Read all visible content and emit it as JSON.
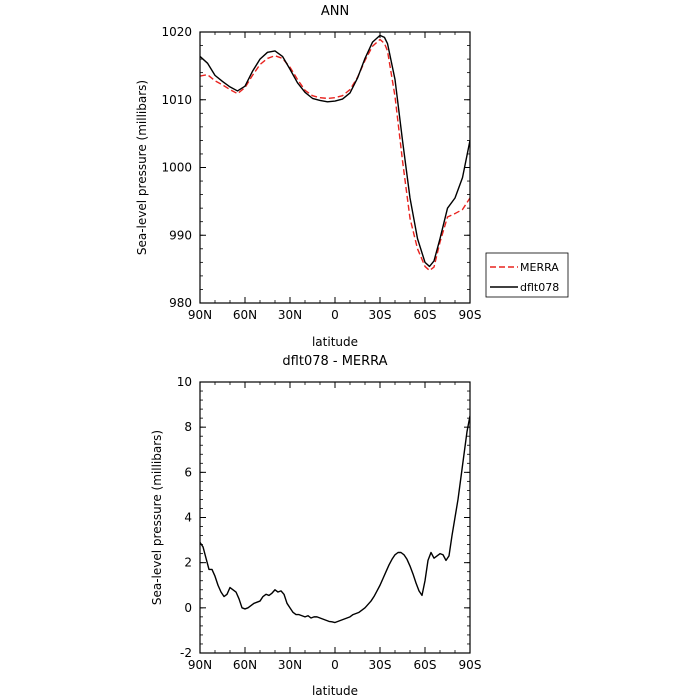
{
  "chart_data": [
    {
      "type": "line",
      "title": "ANN",
      "xlabel": "latitude",
      "ylabel": "Sea-level pressure (millibars)",
      "xlim": [
        -90,
        90
      ],
      "ylim": [
        980,
        1020
      ],
      "x_ticks": [
        -90,
        -60,
        -30,
        0,
        30,
        60,
        90
      ],
      "x_tick_labels": [
        "90N",
        "60N",
        "30N",
        "0",
        "30S",
        "60S",
        "90S"
      ],
      "y_ticks": [
        980,
        990,
        1000,
        1010,
        1020
      ],
      "y_tick_labels": [
        "980",
        "990",
        "1000",
        "1010",
        "1020"
      ],
      "grid": false,
      "legend_position": "right",
      "series": [
        {
          "name": "MERRA",
          "color": "#e8231f",
          "dash": "dashed",
          "x": [
            -90,
            -85,
            -80,
            -75,
            -70,
            -65,
            -60,
            -55,
            -50,
            -45,
            -40,
            -35,
            -30,
            -25,
            -20,
            -15,
            -10,
            -5,
            0,
            5,
            10,
            15,
            20,
            25,
            30,
            33,
            35,
            40,
            45,
            50,
            55,
            60,
            63,
            66,
            70,
            75,
            80,
            85,
            90
          ],
          "y": [
            1013.5,
            1013.7,
            1012.8,
            1012.2,
            1011.5,
            1010.9,
            1011.8,
            1013.6,
            1015.2,
            1016.1,
            1016.5,
            1016.1,
            1014.8,
            1013.0,
            1011.4,
            1010.6,
            1010.3,
            1010.2,
            1010.3,
            1010.6,
            1011.5,
            1013.3,
            1015.8,
            1017.9,
            1018.9,
            1018.3,
            1017.2,
            1010.5,
            1001.0,
            992.5,
            988.0,
            985.4,
            984.8,
            985.3,
            989.0,
            992.7,
            993.2,
            993.8,
            995.5
          ]
        },
        {
          "name": "dflt078",
          "color": "#000000",
          "dash": "solid",
          "x": [
            -90,
            -85,
            -80,
            -75,
            -70,
            -65,
            -60,
            -55,
            -50,
            -45,
            -40,
            -35,
            -30,
            -25,
            -20,
            -15,
            -10,
            -5,
            0,
            5,
            10,
            15,
            20,
            25,
            30,
            33,
            35,
            40,
            45,
            50,
            55,
            60,
            63,
            66,
            70,
            75,
            80,
            85,
            90
          ],
          "y": [
            1016.4,
            1015.4,
            1013.6,
            1012.7,
            1011.9,
            1011.3,
            1012.0,
            1014.2,
            1016.0,
            1017.0,
            1017.2,
            1016.4,
            1014.5,
            1012.5,
            1011.1,
            1010.2,
            1009.9,
            1009.7,
            1009.8,
            1010.1,
            1011.0,
            1013.2,
            1016.1,
            1018.5,
            1019.5,
            1019.2,
            1018.3,
            1013.0,
            1004.0,
            995.5,
            989.5,
            986.0,
            985.4,
            986.2,
            989.5,
            994.0,
            995.5,
            998.5,
            1004.0
          ]
        }
      ]
    },
    {
      "type": "line",
      "title": "dflt078 - MERRA",
      "xlabel": "latitude",
      "ylabel": "Sea-level pressure (millibars)",
      "xlim": [
        -90,
        90
      ],
      "ylim": [
        -2,
        10
      ],
      "x_ticks": [
        -90,
        -60,
        -30,
        0,
        30,
        60,
        90
      ],
      "x_tick_labels": [
        "90N",
        "60N",
        "30N",
        "0",
        "30S",
        "60S",
        "90S"
      ],
      "y_ticks": [
        -2,
        0,
        2,
        4,
        6,
        8,
        10
      ],
      "y_tick_labels": [
        "-2",
        "0",
        "2",
        "4",
        "6",
        "8",
        "10"
      ],
      "grid": false,
      "series": [
        {
          "color": "#000000",
          "dash": "solid",
          "x": [
            -90,
            -88,
            -86,
            -84,
            -82,
            -80,
            -78,
            -76,
            -74,
            -72,
            -70,
            -68,
            -66,
            -64,
            -62,
            -60,
            -58,
            -56,
            -54,
            -52,
            -50,
            -48,
            -46,
            -44,
            -42,
            -40,
            -38,
            -36,
            -34,
            -32,
            -30,
            -28,
            -26,
            -24,
            -22,
            -20,
            -18,
            -16,
            -14,
            -12,
            -10,
            -8,
            -6,
            -4,
            -2,
            0,
            2,
            4,
            6,
            8,
            10,
            12,
            14,
            16,
            18,
            20,
            22,
            24,
            26,
            28,
            30,
            32,
            34,
            36,
            38,
            40,
            42,
            44,
            46,
            48,
            50,
            52,
            54,
            56,
            58,
            60,
            62,
            64,
            66,
            68,
            70,
            72,
            74,
            76,
            78,
            80,
            82,
            84,
            86,
            88,
            90
          ],
          "y": [
            2.9,
            2.7,
            2.2,
            1.7,
            1.7,
            1.4,
            1.0,
            0.7,
            0.5,
            0.6,
            0.9,
            0.8,
            0.7,
            0.4,
            0.0,
            -0.05,
            0.0,
            0.1,
            0.2,
            0.25,
            0.3,
            0.5,
            0.6,
            0.55,
            0.65,
            0.8,
            0.7,
            0.75,
            0.6,
            0.2,
            0.0,
            -0.2,
            -0.3,
            -0.3,
            -0.35,
            -0.4,
            -0.35,
            -0.45,
            -0.4,
            -0.4,
            -0.45,
            -0.5,
            -0.55,
            -0.6,
            -0.62,
            -0.65,
            -0.6,
            -0.55,
            -0.5,
            -0.45,
            -0.4,
            -0.3,
            -0.25,
            -0.2,
            -0.1,
            0.0,
            0.15,
            0.3,
            0.5,
            0.75,
            1.0,
            1.3,
            1.6,
            1.9,
            2.15,
            2.35,
            2.45,
            2.45,
            2.35,
            2.15,
            1.85,
            1.5,
            1.1,
            0.75,
            0.55,
            1.2,
            2.1,
            2.45,
            2.2,
            2.3,
            2.4,
            2.35,
            2.1,
            2.3,
            3.2,
            4.0,
            4.8,
            5.8,
            6.8,
            7.8,
            8.5
          ]
        }
      ]
    }
  ]
}
